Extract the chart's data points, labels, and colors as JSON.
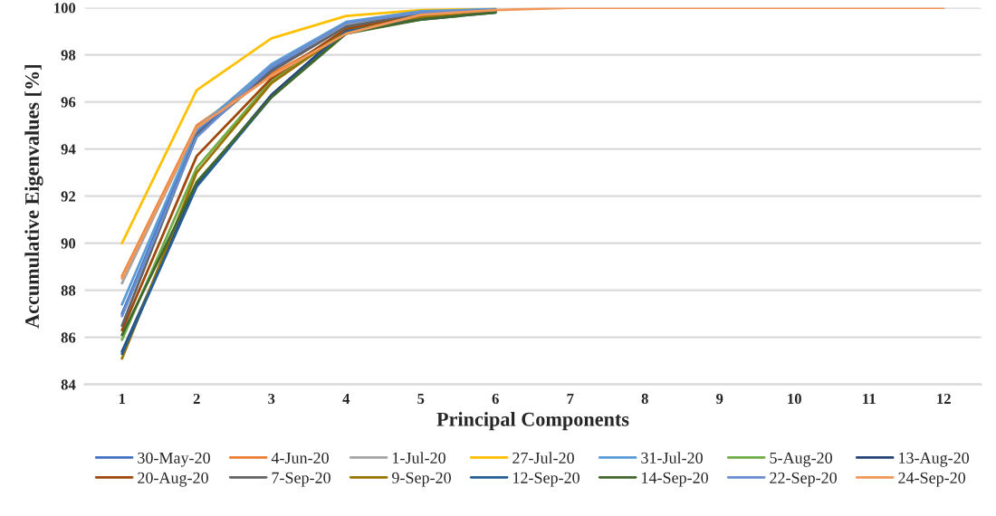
{
  "chart_data": {
    "type": "line",
    "xlabel": "Principal Components",
    "ylabel": "Accumulative Eigenvalues [%]",
    "categories": [
      "1",
      "2",
      "3",
      "4",
      "5",
      "6",
      "7",
      "8",
      "9",
      "10",
      "11",
      "12"
    ],
    "ylim": [
      84,
      100
    ],
    "yticks": [
      84,
      86,
      88,
      90,
      92,
      94,
      96,
      98,
      100
    ],
    "grid": "y",
    "legend": "bottom",
    "marker": "none",
    "line_style": "solid",
    "series": [
      {
        "name": "30-May-20",
        "color": "#4472c4",
        "values": [
          87.0,
          94.7,
          97.4,
          99.3,
          99.8,
          99.9,
          null,
          null,
          null,
          null,
          null,
          null
        ]
      },
      {
        "name": "4-Jun-20",
        "color": "#ed7d31",
        "values": [
          88.6,
          95.0,
          97.2,
          98.9,
          99.7,
          99.9,
          null,
          null,
          null,
          null,
          null,
          null
        ]
      },
      {
        "name": "1-Jul-20",
        "color": "#a5a5a5",
        "values": [
          88.3,
          94.9,
          97.5,
          99.3,
          99.8,
          99.9,
          null,
          null,
          null,
          null,
          null,
          null
        ]
      },
      {
        "name": "27-Jul-20",
        "color": "#ffc000",
        "values": [
          90.0,
          96.5,
          98.7,
          99.65,
          99.9,
          99.95,
          null,
          null,
          null,
          null,
          null,
          null
        ]
      },
      {
        "name": "31-Jul-20",
        "color": "#5b9bd5",
        "values": [
          87.4,
          94.8,
          97.6,
          99.4,
          99.85,
          99.95,
          null,
          null,
          null,
          null,
          null,
          null
        ]
      },
      {
        "name": "5-Aug-20",
        "color": "#70ad47",
        "values": [
          85.9,
          93.2,
          96.9,
          99.0,
          99.6,
          99.85,
          null,
          null,
          null,
          null,
          null,
          null
        ]
      },
      {
        "name": "13-Aug-20",
        "color": "#264478",
        "values": [
          85.4,
          92.5,
          96.3,
          99.1,
          99.6,
          99.85,
          null,
          null,
          null,
          null,
          null,
          null
        ]
      },
      {
        "name": "20-Aug-20",
        "color": "#9e480e",
        "values": [
          86.3,
          93.7,
          97.0,
          99.1,
          99.7,
          99.9,
          null,
          null,
          null,
          null,
          null,
          null
        ]
      },
      {
        "name": "7-Sep-20",
        "color": "#636363",
        "values": [
          86.5,
          94.6,
          97.3,
          99.2,
          99.75,
          99.9,
          null,
          null,
          null,
          null,
          null,
          null
        ]
      },
      {
        "name": "9-Sep-20",
        "color": "#997300",
        "values": [
          85.1,
          93.0,
          96.8,
          99.0,
          99.6,
          99.85,
          null,
          null,
          null,
          null,
          null,
          null
        ]
      },
      {
        "name": "12-Sep-20",
        "color": "#255e91",
        "values": [
          85.3,
          92.4,
          96.2,
          99.0,
          99.5,
          99.8,
          null,
          null,
          null,
          null,
          null,
          null
        ]
      },
      {
        "name": "14-Sep-20",
        "color": "#43682b",
        "values": [
          86.1,
          92.6,
          96.2,
          98.9,
          99.5,
          99.8,
          null,
          null,
          null,
          null,
          null,
          null
        ]
      },
      {
        "name": "22-Sep-20",
        "color": "#698ed0",
        "values": [
          86.9,
          94.5,
          97.5,
          99.35,
          99.8,
          99.9,
          null,
          null,
          null,
          null,
          null,
          null
        ]
      },
      {
        "name": "24-Sep-20",
        "color": "#f1975a",
        "values": [
          88.5,
          94.9,
          97.1,
          98.9,
          99.7,
          99.9,
          100,
          100,
          100,
          100,
          100,
          100
        ]
      }
    ]
  }
}
